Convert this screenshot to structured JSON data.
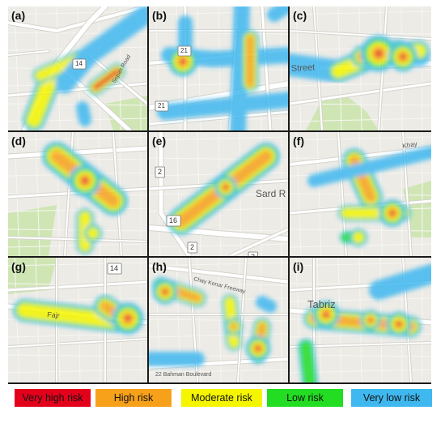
{
  "panels": [
    {
      "label": "(a)",
      "roads": [
        {
          "text": "14"
        },
        {
          "text": "Sepah Road"
        }
      ]
    },
    {
      "label": "(b)",
      "roads": [
        {
          "text": "21"
        },
        {
          "text": "21"
        }
      ]
    },
    {
      "label": "(c)",
      "roads": [
        {
          "text": "Street"
        }
      ]
    },
    {
      "label": "(d)",
      "roads": []
    },
    {
      "label": "(e)",
      "roads": [
        {
          "text": "2"
        },
        {
          "text": "Sard R"
        },
        {
          "text": "16"
        },
        {
          "text": "2"
        },
        {
          "text": "2"
        }
      ]
    },
    {
      "label": "(f)",
      "roads": [
        {
          "text": "Khay"
        }
      ]
    },
    {
      "label": "(g)",
      "roads": [
        {
          "text": "14"
        },
        {
          "text": "Fajr"
        }
      ]
    },
    {
      "label": "(h)",
      "roads": [
        {
          "text": "Chay Kenar Freeway"
        },
        {
          "text": "22 Bahman Boulevard"
        }
      ]
    },
    {
      "label": "(i)",
      "roads": [
        {
          "text": "Tabriz"
        }
      ]
    }
  ],
  "legend": [
    {
      "label": "Very high risk",
      "color": "#e3001b"
    },
    {
      "label": "High risk",
      "color": "#f7a11a"
    },
    {
      "label": "Moderate risk",
      "color": "#f5f500"
    },
    {
      "label": "Low risk",
      "color": "#22dd22"
    },
    {
      "label": "Very low risk",
      "color": "#3fb8f0"
    }
  ],
  "colors": {
    "map_background": "#ecebe6",
    "road": "#ffffff",
    "park": "#cfe6b4",
    "hill": "#c9c5bd"
  }
}
